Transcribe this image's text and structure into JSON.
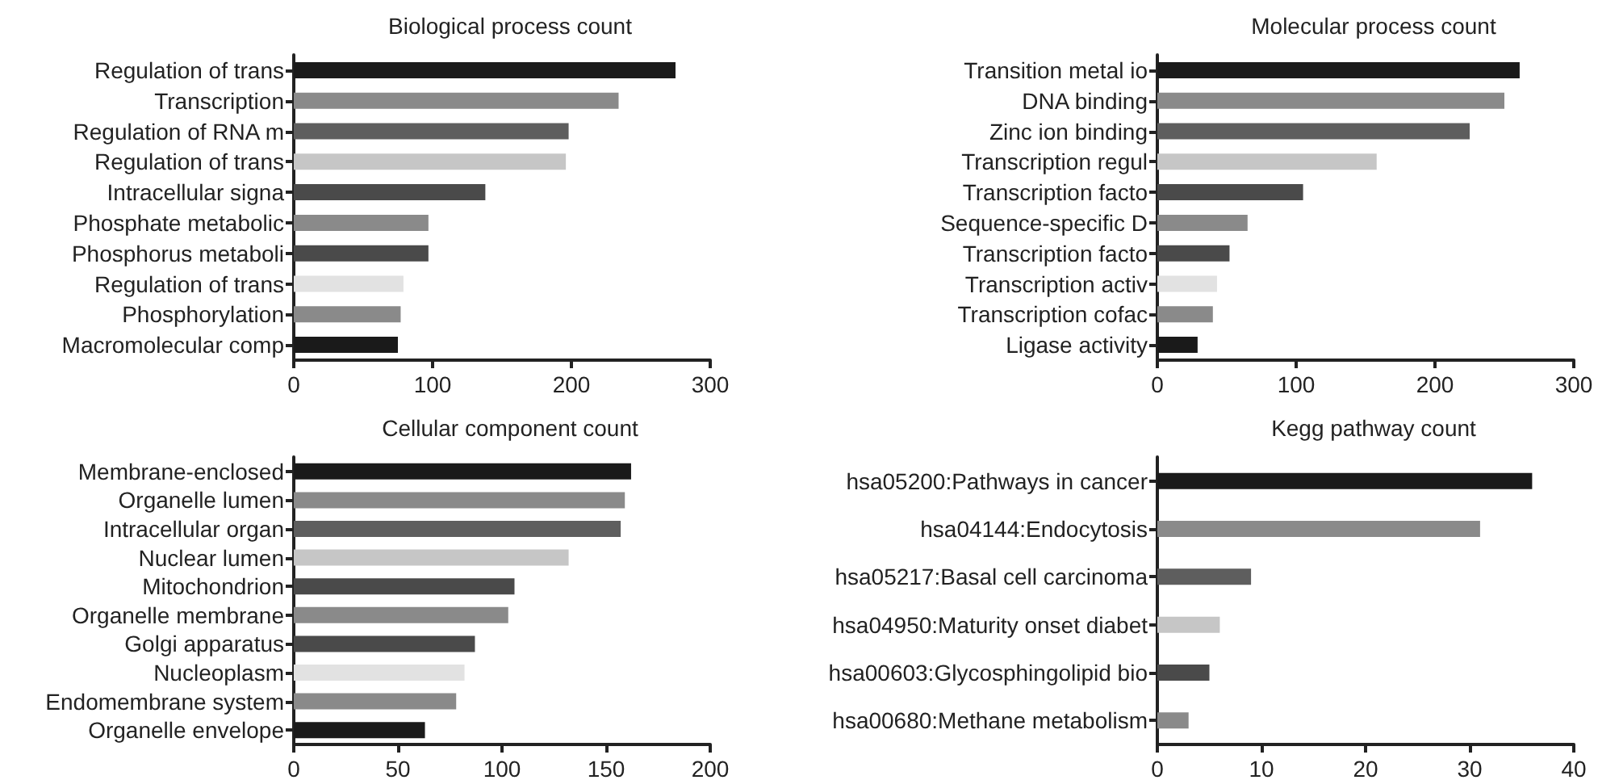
{
  "chart_data": [
    {
      "type": "bar",
      "orientation": "horizontal",
      "title": "Biological process count",
      "categories": [
        "Regulation of trans",
        "Transcription",
        "Regulation of RNA m",
        "Regulation of trans",
        "Intracellular signa",
        "Phosphate metabolic",
        "Phosphorus metaboli",
        "Regulation of trans",
        "Phosphorylation",
        "Macromolecular comp"
      ],
      "values": [
        275,
        234,
        198,
        196,
        138,
        97,
        97,
        79,
        77,
        75
      ],
      "colors": [
        "#1a1a1a",
        "#8a8a8a",
        "#5e5e5e",
        "#c6c6c6",
        "#4a4a4a",
        "#8a8a8a",
        "#4a4a4a",
        "#e2e2e2",
        "#8a8a8a",
        "#1a1a1a"
      ],
      "xlim": [
        0,
        300
      ],
      "xticks": [
        0,
        100,
        200,
        300
      ],
      "grid": false
    },
    {
      "type": "bar",
      "orientation": "horizontal",
      "title": "Molecular process count",
      "categories": [
        "Transition metal io",
        "DNA binding",
        "Zinc ion binding",
        "Transcription regul",
        "Transcription facto",
        "Sequence-specific D",
        "Transcription facto",
        "Transcription activ",
        "Transcription cofac",
        "Ligase activity"
      ],
      "values": [
        261,
        250,
        225,
        158,
        105,
        65,
        52,
        43,
        40,
        29
      ],
      "colors": [
        "#1a1a1a",
        "#8a8a8a",
        "#5e5e5e",
        "#c6c6c6",
        "#4a4a4a",
        "#8a8a8a",
        "#4a4a4a",
        "#e2e2e2",
        "#8a8a8a",
        "#1a1a1a"
      ],
      "xlim": [
        0,
        300
      ],
      "xticks": [
        0,
        100,
        200,
        300
      ],
      "grid": false
    },
    {
      "type": "bar",
      "orientation": "horizontal",
      "title": "Cellular component count",
      "categories": [
        "Membrane-enclosed",
        "Organelle lumen",
        "Intracellular organ",
        "Nuclear lumen",
        "Mitochondrion",
        "Organelle membrane",
        "Golgi apparatus",
        "Nucleoplasm",
        "Endomembrane system",
        "Organelle envelope"
      ],
      "values": [
        162,
        159,
        157,
        132,
        106,
        103,
        87,
        82,
        78,
        63
      ],
      "colors": [
        "#1a1a1a",
        "#8a8a8a",
        "#5e5e5e",
        "#c6c6c6",
        "#4a4a4a",
        "#8a8a8a",
        "#4a4a4a",
        "#e2e2e2",
        "#8a8a8a",
        "#1a1a1a"
      ],
      "xlim": [
        0,
        200
      ],
      "xticks": [
        0,
        50,
        100,
        150,
        200
      ],
      "grid": false
    },
    {
      "type": "bar",
      "orientation": "horizontal",
      "title": "Kegg pathway count",
      "categories": [
        "hsa05200:Pathways in cancer",
        "hsa04144:Endocytosis",
        "hsa05217:Basal cell carcinoma",
        "hsa04950:Maturity onset diabet",
        "hsa00603:Glycosphingolipid bio",
        "hsa00680:Methane metabolism"
      ],
      "values": [
        36,
        31,
        9,
        6,
        5,
        3
      ],
      "colors": [
        "#1a1a1a",
        "#8a8a8a",
        "#5e5e5e",
        "#c6c6c6",
        "#4a4a4a",
        "#8a8a8a"
      ],
      "xlim": [
        0,
        40
      ],
      "xticks": [
        0,
        10,
        20,
        30,
        40
      ],
      "grid": false
    }
  ]
}
